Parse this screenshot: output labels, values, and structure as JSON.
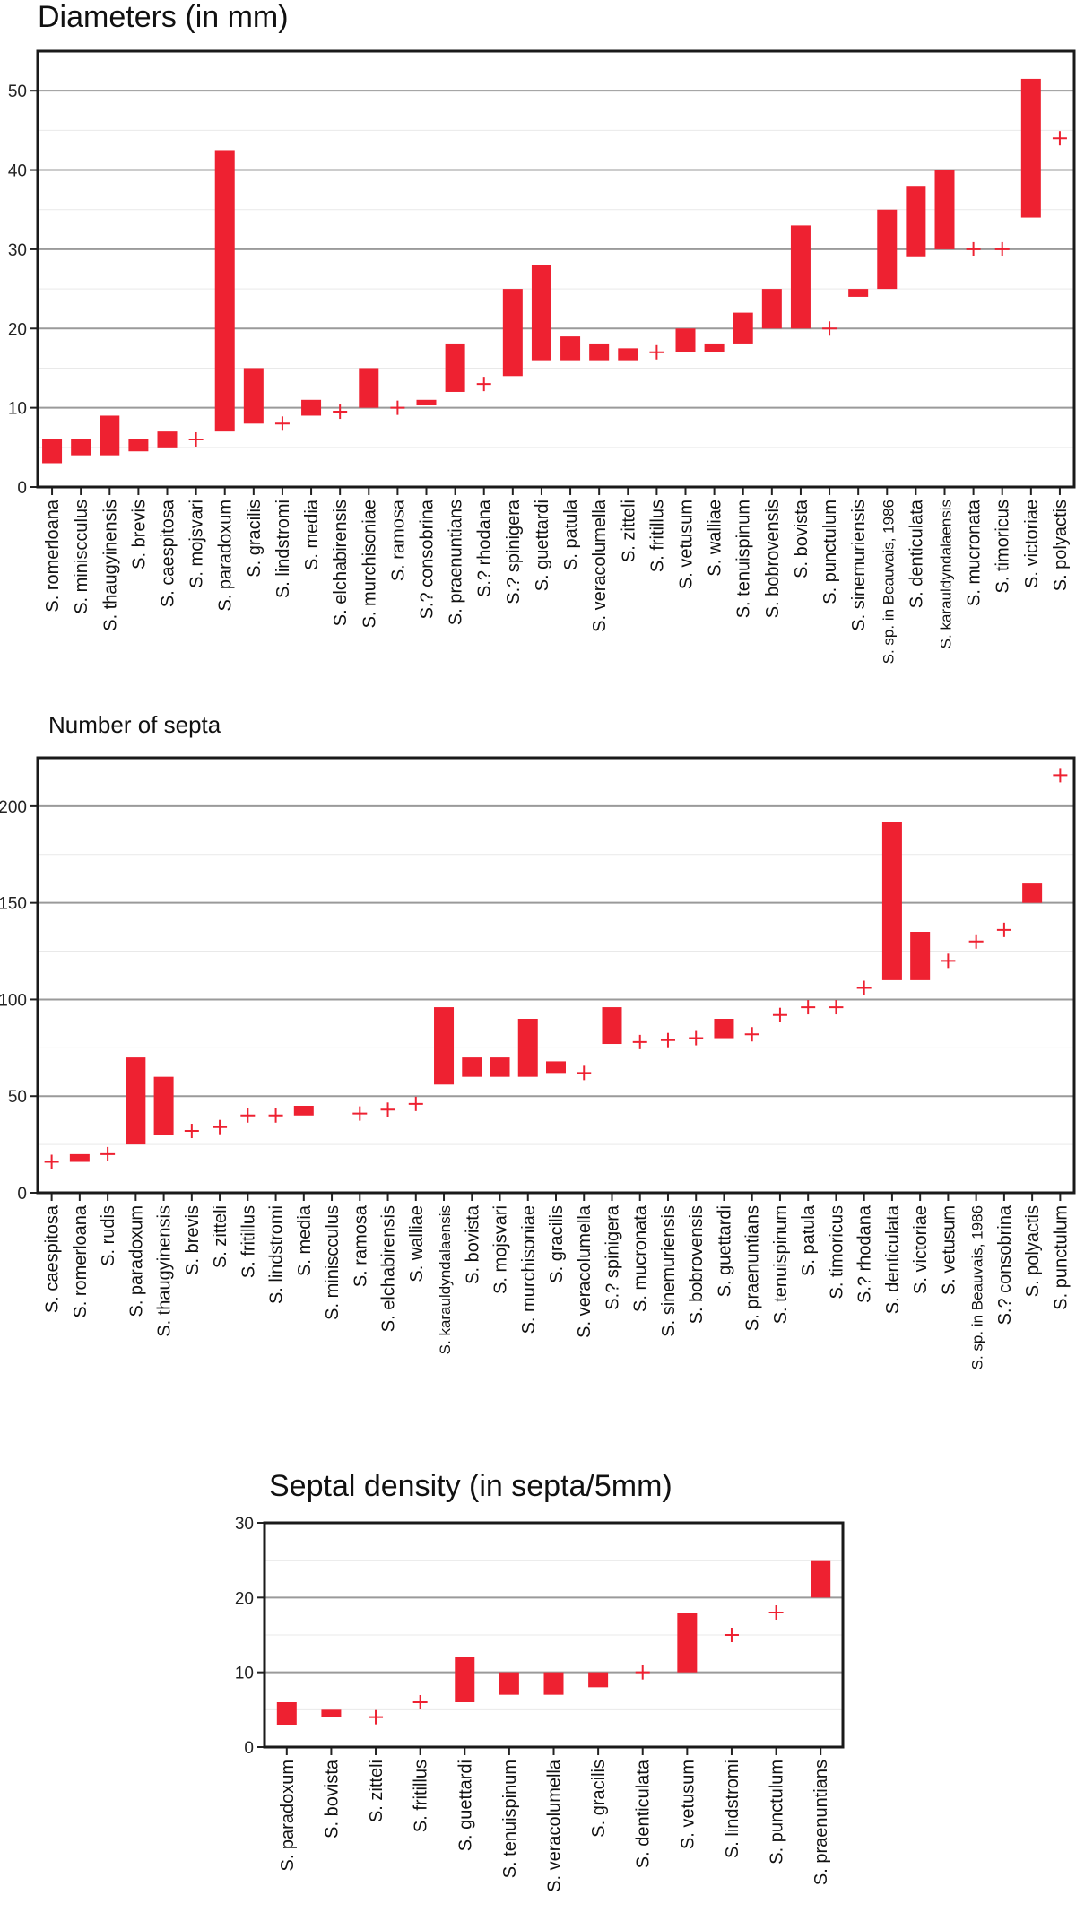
{
  "chart_data": [
    {
      "type": "floating-bar",
      "title": "Diameters (in mm)",
      "xlabel": "",
      "ylabel": "",
      "ylim": [
        0,
        55
      ],
      "yticks": [
        0,
        10,
        20,
        30,
        40,
        50
      ],
      "bar_color": "#ee2131",
      "categories": [
        "S. romerloana",
        "S. miniscculus",
        "S. thaugyinensis",
        "S. brevis",
        "S. caespitosa",
        "S. mojsvari",
        "S. paradoxum",
        "S. gracilis",
        "S. lindstromi",
        "S. media",
        "S. elchabirensis",
        "S. murchisoniae",
        "S. ramosa",
        "S.? consobrina",
        "S. praenuntians",
        "S.? rhodana",
        "S.? spinigera",
        "S. guettardi",
        "S. patula",
        "S. veracolumella",
        "S. zitteli",
        "S. fritillus",
        "S. vetusum",
        "S. walliae",
        "S. tenuispinum",
        "S. bobrovensis",
        "S. bovista",
        "S. punctulum",
        "S. sinemuriensis",
        "S. sp. in Beauvais, 1986",
        "S. denticulata",
        "S. karauldyndalaensis",
        "S. mucronata",
        "S. timoricus",
        "S. victoriae",
        "S. polyactis"
      ],
      "low": [
        3,
        4,
        4,
        4.5,
        5,
        6,
        7,
        8,
        8,
        9,
        9.5,
        10,
        10,
        10.3,
        12,
        13,
        14,
        16,
        16,
        16,
        16,
        17,
        17,
        17,
        18,
        20,
        20,
        20,
        24,
        25,
        29,
        30,
        30,
        30,
        34,
        44
      ],
      "high": [
        6,
        6,
        9,
        6,
        7,
        6,
        42.5,
        15,
        8,
        11,
        9.5,
        15,
        10,
        11,
        18,
        13,
        25,
        28,
        19,
        18,
        17.5,
        17,
        20,
        18,
        22,
        25,
        33,
        20,
        25,
        35,
        38,
        40,
        30,
        30,
        51.5,
        44
      ]
    },
    {
      "type": "floating-bar",
      "title": "Number of septa",
      "xlabel": "",
      "ylabel": "",
      "ylim": [
        0,
        225
      ],
      "yticks": [
        0,
        50,
        100,
        150,
        200
      ],
      "bar_color": "#ee2131",
      "categories": [
        "S. caespitosa",
        "S. romerloana",
        "S. rudis",
        "S. paradoxum",
        "S. thaugyinensis",
        "S. brevis",
        "S. zitteli",
        "S. fritillus",
        "S. lindstromi",
        "S. media",
        "S. miniscculus",
        "S. ramosa",
        "S. elchabirensis",
        "S. walliae",
        "S. karauldyndalaensis",
        "S. bovista",
        "S. mojsvari",
        "S. murchisoniae",
        "S. gracilis",
        "S. veracolumella",
        "S.? spinigera",
        "S. mucronata",
        "S. sinemuriensis",
        "S. bobrovensis",
        "S. guettardi",
        "S. praenuntians",
        "S. tenuispinum",
        "S. patula",
        "S. timoricus",
        "S.? rhodana",
        "S. denticulata",
        "S. victoriae",
        "S. vetusum",
        "S. sp. in Beauvais, 1986",
        "S.? consobrina",
        "S. polyactis",
        "S. punctulum"
      ],
      "low": [
        16,
        16,
        20,
        25,
        30,
        32,
        34,
        40,
        40,
        40,
        null,
        41,
        43,
        46,
        56,
        60,
        60,
        60,
        62,
        62,
        77,
        78,
        79,
        80,
        80,
        82,
        92,
        96,
        96,
        106,
        110,
        110,
        120,
        130,
        136,
        150,
        216
      ],
      "high": [
        16,
        20,
        20,
        70,
        60,
        32,
        34,
        40,
        40,
        45,
        null,
        41,
        43,
        46,
        96,
        70,
        70,
        90,
        68,
        62,
        96,
        78,
        79,
        80,
        90,
        82,
        92,
        96,
        96,
        106,
        192,
        135,
        120,
        130,
        136,
        160,
        216
      ]
    },
    {
      "type": "floating-bar",
      "title": "Septal density (in septa/5mm)",
      "xlabel": "",
      "ylabel": "",
      "ylim": [
        0,
        30
      ],
      "yticks": [
        0,
        10,
        20,
        30
      ],
      "bar_color": "#ee2131",
      "categories": [
        "S. paradoxum",
        "S. bovista",
        "S. zitteli",
        "S. fritillus",
        "S. guettardi",
        "S. tenuispinum",
        "S. veracolumella",
        "S. gracilis",
        "S. denticulata",
        "S. vetusum",
        "S. lindstromi",
        "S. punctulum",
        "S. praenuntians"
      ],
      "low": [
        3,
        4,
        4,
        6,
        6,
        7,
        7,
        8,
        10,
        10,
        15,
        18,
        20
      ],
      "high": [
        6,
        5,
        4,
        6,
        12,
        10,
        10,
        10,
        10,
        18,
        15,
        18,
        25
      ]
    }
  ]
}
